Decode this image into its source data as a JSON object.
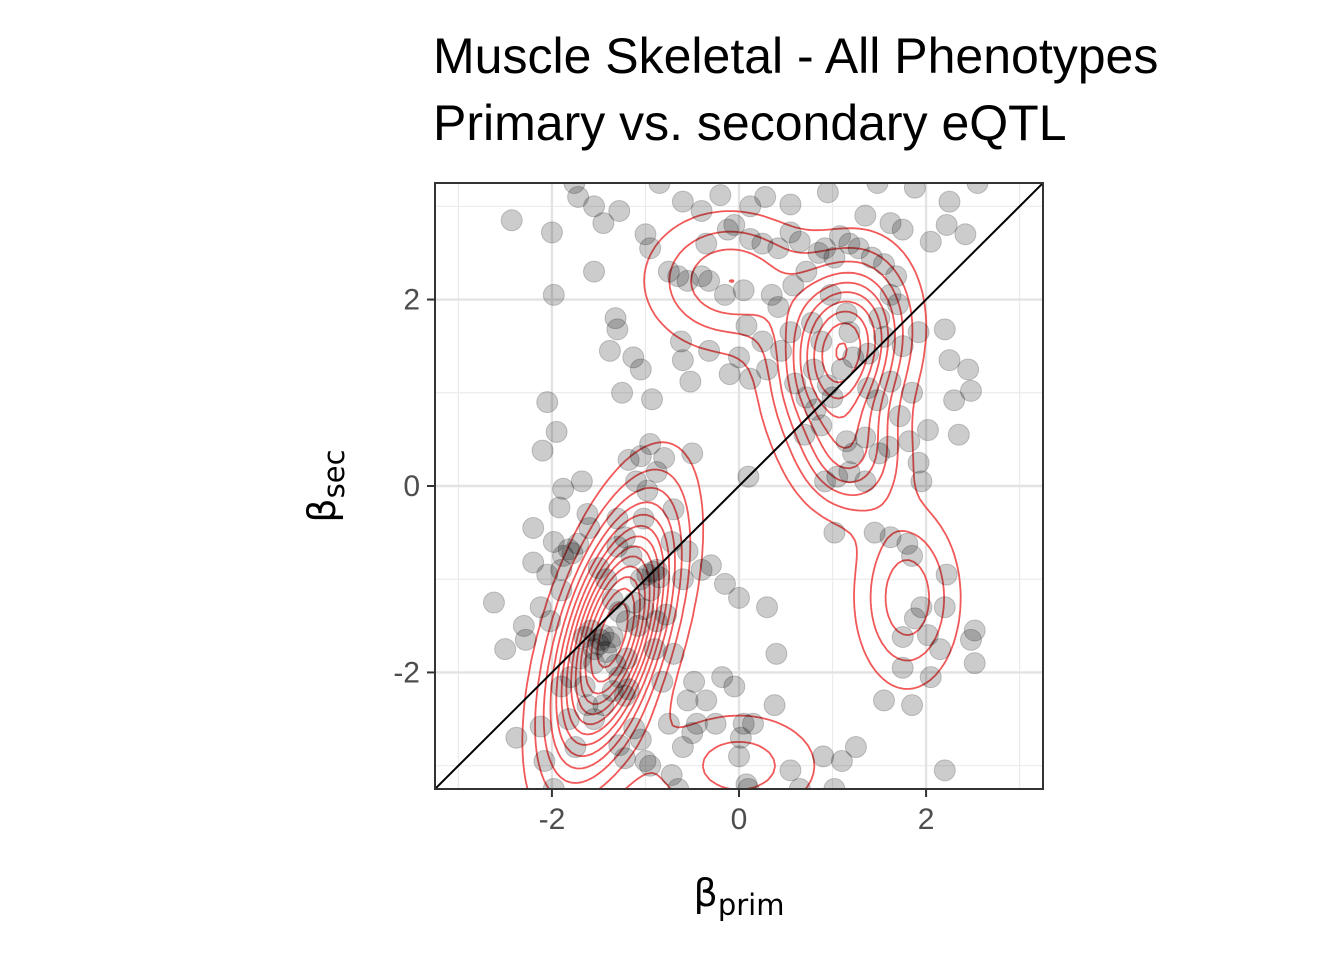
{
  "chart_data": {
    "type": "scatter",
    "title": [
      "Muscle Skeletal - All Phenotypes",
      "Primary vs. secondary eQTL"
    ],
    "xlabel": {
      "symbol": "β",
      "subscript": "prim"
    },
    "ylabel": {
      "symbol": "β",
      "subscript": "sec"
    },
    "xlim": [
      -3.25,
      3.25
    ],
    "ylim": [
      -3.25,
      3.25
    ],
    "x_ticks": [
      -2,
      0,
      2
    ],
    "x_tick_labels": [
      "-2",
      "0",
      "2"
    ],
    "y_ticks": [
      -2,
      0,
      2
    ],
    "y_tick_labels": [
      "-2",
      "0",
      "2"
    ],
    "minor_gridlines": [
      -3,
      -1,
      1,
      3
    ],
    "grid": true,
    "reference_line": {
      "slope": 1,
      "intercept": 0,
      "color": "#000000"
    },
    "point_color": "#000000",
    "point_alpha": 0.2,
    "contour_color": "#ef3b3b",
    "density_centers": [
      {
        "x": -1.35,
        "y": -1.6,
        "sx": 0.42,
        "sy": 0.9,
        "rho": 0.55,
        "w": 0.45
      },
      {
        "x": 1.1,
        "y": 1.45,
        "sx": 0.42,
        "sy": 0.6,
        "rho": 0.2,
        "w": 0.25
      },
      {
        "x": -0.1,
        "y": 2.2,
        "sx": 0.55,
        "sy": 0.45,
        "rho": 0.0,
        "w": 0.1
      },
      {
        "x": 1.8,
        "y": -1.2,
        "sx": 0.35,
        "sy": 0.6,
        "rho": 0.0,
        "w": 0.08
      },
      {
        "x": 0.0,
        "y": -3.0,
        "sx": 0.6,
        "sy": 0.4,
        "rho": 0.0,
        "w": 0.06
      },
      {
        "x": 1.2,
        "y": 0.3,
        "sx": 0.35,
        "sy": 0.4,
        "rho": 0.0,
        "w": 0.06
      }
    ],
    "points": [
      [
        -2.43,
        2.85
      ],
      [
        -2.0,
        2.72
      ],
      [
        -1.76,
        3.25
      ],
      [
        -1.72,
        3.1
      ],
      [
        -1.55,
        3.0
      ],
      [
        -1.45,
        2.82
      ],
      [
        -1.32,
        1.8
      ],
      [
        -1.3,
        1.68
      ],
      [
        -1.38,
        1.45
      ],
      [
        -1.13,
        1.38
      ],
      [
        -0.93,
        0.93
      ],
      [
        -0.6,
        1.35
      ],
      [
        -0.52,
        1.12
      ],
      [
        -1.98,
        2.05
      ],
      [
        -2.05,
        0.9
      ],
      [
        -1.95,
        0.58
      ],
      [
        -2.1,
        0.38
      ],
      [
        -1.88,
        -0.03
      ],
      [
        -1.92,
        -0.23
      ],
      [
        -2.2,
        -0.45
      ],
      [
        -1.98,
        -0.6
      ],
      [
        -1.88,
        -0.75
      ],
      [
        -1.82,
        -0.68
      ],
      [
        -1.78,
        -0.72
      ],
      [
        -2.05,
        -0.95
      ],
      [
        -2.62,
        -1.25
      ],
      [
        -2.5,
        -1.75
      ],
      [
        -2.3,
        -1.5
      ],
      [
        -2.28,
        -1.65
      ],
      [
        -2.12,
        -1.3
      ],
      [
        -2.02,
        -1.45
      ],
      [
        -2.38,
        -2.7
      ],
      [
        -2.12,
        -2.58
      ],
      [
        -2.08,
        -2.95
      ],
      [
        -1.98,
        -3.25
      ],
      [
        -1.82,
        -2.5
      ],
      [
        -1.8,
        -2.05
      ],
      [
        -1.7,
        -1.85
      ],
      [
        -1.65,
        -1.62
      ],
      [
        -1.58,
        -1.55
      ],
      [
        -1.55,
        -1.75
      ],
      [
        -1.5,
        -1.7
      ],
      [
        -1.48,
        -1.65
      ],
      [
        -1.45,
        -1.6
      ],
      [
        -1.42,
        -1.78
      ],
      [
        -1.38,
        -1.68
      ],
      [
        -1.35,
        -1.62
      ],
      [
        -1.32,
        -1.92
      ],
      [
        -1.28,
        -2.05
      ],
      [
        -1.22,
        -2.25
      ],
      [
        -1.18,
        -2.18
      ],
      [
        -1.12,
        -2.6
      ],
      [
        -1.05,
        -2.72
      ],
      [
        -1.0,
        -2.95
      ],
      [
        -0.95,
        -3.0
      ],
      [
        -0.72,
        -3.1
      ],
      [
        -0.65,
        -3.25
      ],
      [
        -0.55,
        -2.3
      ],
      [
        -0.48,
        -2.1
      ],
      [
        -0.35,
        -2.3
      ],
      [
        -0.25,
        -2.55
      ],
      [
        -0.18,
        -2.05
      ],
      [
        -0.05,
        -2.15
      ],
      [
        0.02,
        -2.7
      ],
      [
        0.05,
        -2.55
      ],
      [
        0.15,
        -2.55
      ],
      [
        0.08,
        -3.2
      ],
      [
        0.1,
        -3.25
      ],
      [
        0.0,
        -2.9
      ],
      [
        -1.5,
        -0.88
      ],
      [
        -1.42,
        -1.0
      ],
      [
        -1.35,
        -1.22
      ],
      [
        -1.28,
        -1.35
      ],
      [
        -1.2,
        -1.45
      ],
      [
        -1.12,
        -1.25
      ],
      [
        -1.05,
        -1.0
      ],
      [
        -0.98,
        -0.95
      ],
      [
        -0.92,
        -0.92
      ],
      [
        -0.88,
        -0.9
      ],
      [
        -0.85,
        -0.98
      ],
      [
        -0.95,
        -1.12
      ],
      [
        -1.02,
        -1.32
      ],
      [
        -1.08,
        -1.5
      ],
      [
        -0.88,
        -1.45
      ],
      [
        -0.78,
        -1.38
      ],
      [
        -1.15,
        -0.75
      ],
      [
        -1.22,
        -0.55
      ],
      [
        -1.3,
        -0.35
      ],
      [
        -1.02,
        -0.35
      ],
      [
        -0.98,
        -0.05
      ],
      [
        -0.88,
        0.15
      ],
      [
        -0.95,
        0.45
      ],
      [
        -1.05,
        0.32
      ],
      [
        -1.18,
        0.28
      ],
      [
        -1.1,
        0.05
      ],
      [
        -0.72,
        -0.6
      ],
      [
        -0.55,
        -0.7
      ],
      [
        -0.4,
        -0.9
      ],
      [
        -1.62,
        -0.3
      ],
      [
        -1.72,
        -0.62
      ],
      [
        -1.9,
        -0.9
      ],
      [
        -1.9,
        -1.12
      ],
      [
        -1.62,
        -2.35
      ],
      [
        -1.55,
        -2.5
      ],
      [
        -1.45,
        -2.35
      ],
      [
        -1.28,
        -2.78
      ],
      [
        -1.22,
        -2.92
      ],
      [
        -0.82,
        -2.1
      ],
      [
        -0.75,
        -2.55
      ],
      [
        -0.6,
        -2.8
      ],
      [
        0.3,
        -1.3
      ],
      [
        0.55,
        -3.05
      ],
      [
        0.65,
        -3.25
      ],
      [
        1.1,
        -2.95
      ],
      [
        1.25,
        -2.8
      ],
      [
        1.02,
        -3.25
      ],
      [
        2.2,
        -3.05
      ],
      [
        2.05,
        -2.05
      ],
      [
        1.75,
        -1.95
      ],
      [
        1.75,
        -1.62
      ],
      [
        1.88,
        -1.42
      ],
      [
        1.95,
        -1.3
      ],
      [
        2.02,
        -1.6
      ],
      [
        2.2,
        -1.3
      ],
      [
        2.22,
        -0.95
      ],
      [
        2.48,
        -1.65
      ],
      [
        2.52,
        -1.9
      ],
      [
        1.8,
        -0.62
      ],
      [
        1.85,
        -0.75
      ],
      [
        1.62,
        -0.55
      ],
      [
        1.45,
        -0.5
      ],
      [
        1.02,
        -0.5
      ],
      [
        0.92,
        0.05
      ],
      [
        1.05,
        0.1
      ],
      [
        1.18,
        0.15
      ],
      [
        1.22,
        0.35
      ],
      [
        1.15,
        0.48
      ],
      [
        1.35,
        0.52
      ],
      [
        1.5,
        0.35
      ],
      [
        1.6,
        0.42
      ],
      [
        1.82,
        0.48
      ],
      [
        1.92,
        0.25
      ],
      [
        2.02,
        0.6
      ],
      [
        1.72,
        0.75
      ],
      [
        1.85,
        1.0
      ],
      [
        2.3,
        0.92
      ],
      [
        2.48,
        1.02
      ],
      [
        2.25,
        1.35
      ],
      [
        2.2,
        1.68
      ],
      [
        1.92,
        1.65
      ],
      [
        1.75,
        1.5
      ],
      [
        1.55,
        1.6
      ],
      [
        1.38,
        1.42
      ],
      [
        1.22,
        1.38
      ],
      [
        1.1,
        1.25
      ],
      [
        0.95,
        1.08
      ],
      [
        0.8,
        1.25
      ],
      [
        0.72,
        0.95
      ],
      [
        0.82,
        0.82
      ],
      [
        0.88,
        0.65
      ],
      [
        1.0,
        0.95
      ],
      [
        1.18,
        1.65
      ],
      [
        1.15,
        1.85
      ],
      [
        0.98,
        2.05
      ],
      [
        0.78,
        1.75
      ],
      [
        0.55,
        1.65
      ],
      [
        0.45,
        1.45
      ],
      [
        0.3,
        1.25
      ],
      [
        0.12,
        1.15
      ],
      [
        0.0,
        1.38
      ],
      [
        -0.1,
        1.2
      ],
      [
        0.25,
        1.55
      ],
      [
        0.08,
        1.72
      ],
      [
        -0.15,
        2.05
      ],
      [
        0.05,
        2.1
      ],
      [
        0.35,
        2.05
      ],
      [
        0.42,
        1.92
      ],
      [
        0.58,
        2.15
      ],
      [
        0.72,
        2.3
      ],
      [
        0.92,
        2.55
      ],
      [
        1.02,
        2.45
      ],
      [
        1.18,
        2.6
      ],
      [
        1.28,
        2.55
      ],
      [
        1.42,
        2.45
      ],
      [
        1.55,
        2.38
      ],
      [
        1.68,
        2.25
      ],
      [
        1.62,
        2.05
      ],
      [
        1.7,
        1.95
      ],
      [
        1.5,
        1.8
      ],
      [
        1.38,
        1.05
      ],
      [
        1.48,
        0.92
      ],
      [
        1.62,
        1.12
      ],
      [
        -0.75,
        2.3
      ],
      [
        -0.65,
        2.25
      ],
      [
        -0.55,
        2.2
      ],
      [
        -0.4,
        2.25
      ],
      [
        -0.32,
        2.2
      ],
      [
        -0.35,
        2.6
      ],
      [
        -0.12,
        2.75
      ],
      [
        -0.05,
        2.8
      ],
      [
        0.12,
        2.65
      ],
      [
        0.25,
        2.6
      ],
      [
        0.42,
        2.55
      ],
      [
        0.55,
        2.72
      ],
      [
        0.65,
        2.62
      ],
      [
        0.85,
        2.5
      ],
      [
        1.08,
        2.68
      ],
      [
        1.35,
        2.9
      ],
      [
        1.62,
        2.82
      ],
      [
        1.75,
        2.75
      ],
      [
        2.05,
        2.62
      ],
      [
        2.22,
        2.8
      ],
      [
        2.25,
        3.05
      ],
      [
        2.42,
        2.7
      ],
      [
        1.88,
        3.2
      ],
      [
        1.48,
        3.25
      ],
      [
        2.55,
        3.25
      ],
      [
        0.95,
        3.15
      ],
      [
        0.55,
        3.02
      ],
      [
        0.28,
        3.1
      ],
      [
        0.12,
        3.0
      ],
      [
        -0.2,
        3.12
      ],
      [
        -0.4,
        2.95
      ],
      [
        -0.6,
        3.05
      ],
      [
        -0.85,
        3.25
      ],
      [
        -1.0,
        2.7
      ],
      [
        -1.28,
        2.95
      ],
      [
        -1.55,
        2.3
      ],
      [
        -0.95,
        2.55
      ],
      [
        -0.62,
        1.55
      ],
      [
        -0.32,
        1.45
      ],
      [
        -0.5,
        0.35
      ],
      [
        -0.3,
        -0.85
      ],
      [
        -0.15,
        -1.05
      ],
      [
        0.0,
        -1.2
      ],
      [
        0.4,
        -1.8
      ],
      [
        -1.68,
        0.05
      ],
      [
        -2.2,
        -0.82
      ],
      [
        -0.8,
        0.3
      ],
      [
        -0.7,
        -0.25
      ],
      [
        -1.25,
        1.0
      ],
      [
        -1.05,
        1.25
      ],
      [
        0.6,
        1.1
      ],
      [
        0.88,
        1.55
      ],
      [
        2.45,
        1.25
      ],
      [
        2.35,
        0.55
      ],
      [
        1.95,
        0.05
      ],
      [
        1.35,
        0.05
      ],
      [
        0.7,
        0.55
      ],
      [
        0.1,
        0.1
      ],
      [
        2.52,
        -1.55
      ],
      [
        2.15,
        -1.75
      ],
      [
        1.55,
        -2.3
      ],
      [
        1.85,
        -2.35
      ],
      [
        0.38,
        -2.35
      ],
      [
        0.9,
        -2.9
      ],
      [
        -1.6,
        -0.45
      ],
      [
        -1.3,
        -0.65
      ],
      [
        -0.6,
        -1.0
      ],
      [
        -0.45,
        -2.55
      ],
      [
        -1.75,
        -2.8
      ],
      [
        -1.9,
        -2.15
      ],
      [
        -0.5,
        -2.65
      ],
      [
        -0.9,
        -1.75
      ],
      [
        -0.7,
        -1.8
      ],
      [
        -1.35,
        -2.2
      ],
      [
        -1.2,
        -1.85
      ],
      [
        -1.55,
        -1.9
      ],
      [
        -1.65,
        -2.15
      ]
    ]
  }
}
